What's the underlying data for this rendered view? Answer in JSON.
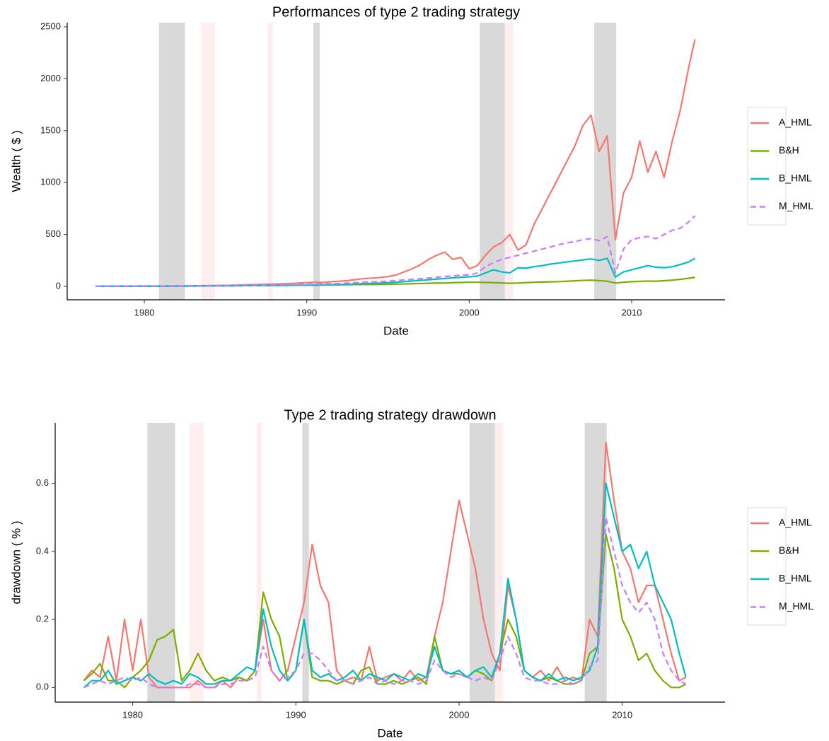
{
  "chart_data": [
    {
      "type": "line",
      "title": "Performances of type 2 trading strategy",
      "x_label": "Date",
      "y_label": "Wealth ( $ )",
      "x": [
        1977,
        1977.5,
        1978,
        1978.5,
        1979,
        1979.5,
        1980,
        1980.5,
        1981,
        1981.5,
        1982,
        1982.5,
        1983,
        1983.5,
        1984,
        1984.5,
        1985,
        1985.5,
        1986,
        1986.5,
        1987,
        1987.5,
        1988,
        1988.5,
        1989,
        1989.5,
        1990,
        1990.5,
        1991,
        1991.5,
        1992,
        1992.5,
        1993,
        1993.5,
        1994,
        1994.5,
        1995,
        1995.5,
        1996,
        1996.5,
        1997,
        1997.5,
        1998,
        1998.5,
        1999,
        1999.5,
        2000,
        2000.5,
        2001,
        2001.5,
        2002,
        2002.5,
        2003,
        2003.5,
        2004,
        2004.5,
        2005,
        2005.5,
        2006,
        2006.5,
        2007,
        2007.5,
        2008,
        2008.5,
        2009,
        2009.5,
        2010,
        2010.5,
        2011,
        2011.5,
        2012,
        2012.5,
        2013,
        2013.5,
        2013.9
      ],
      "series": [
        {
          "name": "A_HML",
          "color": "#F8766D",
          "linestyle": "solid",
          "values": [
            2,
            2,
            2,
            3,
            3,
            3,
            4,
            4,
            4,
            5,
            5,
            5,
            6,
            7,
            8,
            9,
            10,
            12,
            14,
            16,
            18,
            20,
            22,
            25,
            28,
            32,
            36,
            40,
            38,
            45,
            50,
            55,
            65,
            75,
            80,
            85,
            95,
            110,
            140,
            170,
            210,
            260,
            300,
            330,
            260,
            280,
            170,
            200,
            300,
            380,
            420,
            500,
            350,
            400,
            600,
            750,
            900,
            1050,
            1200,
            1350,
            1550,
            1650,
            1300,
            1450,
            450,
            900,
            1050,
            1400,
            1100,
            1300,
            1050,
            1400,
            1700,
            2100,
            2380
          ]
        },
        {
          "name": "B&H",
          "color": "#7CAE00",
          "linestyle": "solid",
          "values": [
            1,
            1,
            1,
            1,
            1,
            2,
            2,
            2,
            2,
            2,
            3,
            3,
            4,
            4,
            4,
            5,
            5,
            6,
            7,
            8,
            9,
            8,
            9,
            10,
            11,
            12,
            12,
            12,
            14,
            15,
            15,
            16,
            17,
            18,
            18,
            19,
            20,
            22,
            24,
            26,
            28,
            30,
            33,
            32,
            36,
            38,
            40,
            40,
            38,
            36,
            33,
            30,
            32,
            36,
            40,
            42,
            44,
            46,
            50,
            54,
            58,
            60,
            56,
            50,
            32,
            40,
            45,
            48,
            52,
            50,
            55,
            60,
            68,
            78,
            88
          ]
        },
        {
          "name": "B_HML",
          "color": "#00BFC4",
          "linestyle": "solid",
          "values": [
            1,
            1,
            1,
            1,
            1,
            2,
            2,
            2,
            2,
            3,
            3,
            3,
            4,
            4,
            5,
            5,
            6,
            6,
            7,
            8,
            8,
            8,
            9,
            10,
            10,
            11,
            11,
            12,
            14,
            16,
            18,
            20,
            24,
            28,
            30,
            32,
            36,
            40,
            46,
            52,
            58,
            64,
            70,
            76,
            82,
            88,
            92,
            100,
            130,
            160,
            140,
            130,
            180,
            175,
            190,
            200,
            215,
            225,
            235,
            245,
            255,
            265,
            250,
            270,
            90,
            140,
            160,
            180,
            200,
            185,
            180,
            190,
            210,
            235,
            270
          ]
        },
        {
          "name": "M_HML",
          "color": "#C77CFF",
          "linestyle": "dashed",
          "values": [
            1,
            1,
            1,
            1,
            2,
            2,
            2,
            3,
            3,
            3,
            4,
            4,
            5,
            5,
            6,
            7,
            8,
            9,
            10,
            11,
            12,
            13,
            14,
            15,
            16,
            18,
            20,
            22,
            24,
            26,
            28,
            32,
            36,
            40,
            42,
            46,
            50,
            56,
            62,
            68,
            74,
            80,
            88,
            96,
            100,
            110,
            110,
            130,
            190,
            230,
            260,
            280,
            300,
            320,
            340,
            360,
            380,
            400,
            420,
            430,
            450,
            460,
            440,
            480,
            130,
            360,
            450,
            470,
            480,
            460,
            500,
            540,
            560,
            620,
            680
          ]
        }
      ],
      "shaded_periods": [
        {
          "xlim": [
            1980.9,
            1982.5
          ],
          "color": "#d9d9d9"
        },
        {
          "xlim": [
            1983.5,
            1984.35
          ],
          "color": "#ffeef0"
        },
        {
          "xlim": [
            1987.6,
            1987.9
          ],
          "color": "#ffeef0"
        },
        {
          "xlim": [
            1990.4,
            1990.8
          ],
          "color": "#d9d9d9"
        },
        {
          "xlim": [
            2000.65,
            2002.2
          ],
          "color": "#d9d9d9"
        },
        {
          "xlim": [
            2002.2,
            2002.7
          ],
          "color": "#ffeef0"
        },
        {
          "xlim": [
            2007.7,
            2009.05
          ],
          "color": "#d9d9d9"
        }
      ],
      "xlim": [
        1975.25,
        2015.75
      ],
      "xticks": [
        1980,
        1990,
        2000,
        2010
      ],
      "ylim": [
        -129,
        2541
      ],
      "yticks": [
        0,
        500,
        1000,
        1500,
        2000,
        2500
      ],
      "legend": "right"
    },
    {
      "type": "line",
      "title": "Type 2 trading strategy drawdown",
      "x_label": "Date",
      "y_label": "drawdown ( % )",
      "x": [
        1977,
        1977.5,
        1978,
        1978.5,
        1979,
        1979.5,
        1980,
        1980.5,
        1981,
        1981.5,
        1982,
        1982.5,
        1983,
        1983.5,
        1984,
        1984.5,
        1985,
        1985.5,
        1986,
        1986.5,
        1987,
        1987.5,
        1988,
        1988.5,
        1989,
        1989.5,
        1990,
        1990.5,
        1991,
        1991.5,
        1992,
        1992.5,
        1993,
        1993.5,
        1994,
        1994.5,
        1995,
        1995.5,
        1996,
        1996.5,
        1997,
        1997.5,
        1998,
        1998.5,
        1999,
        1999.5,
        2000,
        2000.5,
        2001,
        2001.5,
        2002,
        2002.5,
        2003,
        2003.5,
        2004,
        2004.5,
        2005,
        2005.5,
        2006,
        2006.5,
        2007,
        2007.5,
        2008,
        2008.5,
        2009,
        2009.5,
        2010,
        2010.5,
        2011,
        2011.5,
        2012,
        2012.5,
        2013,
        2013.5,
        2013.9
      ],
      "series": [
        {
          "name": "A_HML",
          "color": "#F8766D",
          "linestyle": "solid",
          "values": [
            0.02,
            0.05,
            0.03,
            0.15,
            0.02,
            0.2,
            0.05,
            0.2,
            0.03,
            0,
            0,
            0,
            0,
            0,
            0.02,
            0,
            0,
            0.02,
            0,
            0.03,
            0.02,
            0.05,
            0.2,
            0.05,
            0.02,
            0.05,
            0.15,
            0.25,
            0.42,
            0.3,
            0.25,
            0.05,
            0.02,
            0.03,
            0.02,
            0.12,
            0.02,
            0.03,
            0.04,
            0.02,
            0.05,
            0.02,
            0.03,
            0.15,
            0.25,
            0.4,
            0.55,
            0.45,
            0.35,
            0.2,
            0.1,
            0.05,
            0.3,
            0.2,
            0.05,
            0.03,
            0.05,
            0.02,
            0.06,
            0.02,
            0.03,
            0.02,
            0.2,
            0.15,
            0.72,
            0.55,
            0.4,
            0.35,
            0.25,
            0.3,
            0.3,
            0.2,
            0.1,
            0.02,
            0.03
          ]
        },
        {
          "name": "B&H",
          "color": "#7CAE00",
          "linestyle": "solid",
          "values": [
            0.02,
            0.04,
            0.07,
            0.02,
            0.02,
            0,
            0.03,
            0.05,
            0.08,
            0.14,
            0.15,
            0.17,
            0.02,
            0.05,
            0.1,
            0.05,
            0.02,
            0.03,
            0.02,
            0.03,
            0.02,
            0.05,
            0.28,
            0.2,
            0.15,
            0.02,
            0.05,
            0.2,
            0.03,
            0.02,
            0.02,
            0.01,
            0.02,
            0.01,
            0.05,
            0.06,
            0.01,
            0.01,
            0.02,
            0.01,
            0.02,
            0.03,
            0.01,
            0.15,
            0.05,
            0.04,
            0.04,
            0.03,
            0.05,
            0.04,
            0.02,
            0.1,
            0.2,
            0.15,
            0.05,
            0.03,
            0.02,
            0.03,
            0.02,
            0.01,
            0.01,
            0.02,
            0.1,
            0.12,
            0.45,
            0.35,
            0.2,
            0.15,
            0.08,
            0.1,
            0.05,
            0.02,
            0,
            0,
            0.01
          ]
        },
        {
          "name": "B_HML",
          "color": "#00BFC4",
          "linestyle": "solid",
          "values": [
            0,
            0.02,
            0.02,
            0.05,
            0.01,
            0.02,
            0.03,
            0.02,
            0.04,
            0.02,
            0.01,
            0.02,
            0.01,
            0.04,
            0.03,
            0.01,
            0.01,
            0.02,
            0.02,
            0.04,
            0.06,
            0.05,
            0.23,
            0.12,
            0.05,
            0.02,
            0.05,
            0.2,
            0.05,
            0.03,
            0.04,
            0.02,
            0.03,
            0.05,
            0.02,
            0.04,
            0.03,
            0.02,
            0.04,
            0.03,
            0.02,
            0.04,
            0.03,
            0.12,
            0.05,
            0.04,
            0.05,
            0.03,
            0.05,
            0.06,
            0.03,
            0.1,
            0.32,
            0.2,
            0.05,
            0.03,
            0.02,
            0.04,
            0.02,
            0.03,
            0.02,
            0.03,
            0.05,
            0.12,
            0.6,
            0.5,
            0.4,
            0.42,
            0.35,
            0.4,
            0.3,
            0.25,
            0.2,
            0.1,
            0.03
          ]
        },
        {
          "name": "M_HML",
          "color": "#C77CFF",
          "linestyle": "dashed",
          "values": [
            0,
            0.01,
            0.02,
            0.01,
            0.02,
            0.03,
            0.02,
            0.03,
            0.01,
            0,
            0,
            0,
            0,
            0.01,
            0.01,
            0,
            0,
            0.01,
            0.01,
            0.02,
            0.02,
            0.03,
            0.12,
            0.05,
            0.02,
            0.03,
            0.05,
            0.1,
            0.1,
            0.08,
            0.05,
            0.02,
            0.02,
            0.01,
            0.02,
            0.03,
            0.01,
            0.02,
            0.01,
            0.02,
            0.02,
            0.01,
            0.02,
            0.08,
            0.05,
            0.03,
            0.04,
            0.03,
            0.02,
            0.03,
            0.02,
            0.08,
            0.15,
            0.1,
            0.03,
            0.02,
            0.02,
            0.01,
            0.01,
            0.02,
            0.01,
            0.02,
            0.06,
            0.08,
            0.5,
            0.4,
            0.3,
            0.25,
            0.22,
            0.25,
            0.2,
            0.1,
            0.05,
            0.02,
            0.01
          ]
        }
      ],
      "shaded_periods": [
        {
          "xlim": [
            1980.9,
            1982.6
          ],
          "color": "#d9d9d9"
        },
        {
          "xlim": [
            1983.5,
            1984.35
          ],
          "color": "#ffeef0"
        },
        {
          "xlim": [
            1987.6,
            1987.9
          ],
          "color": "#ffeef0"
        },
        {
          "xlim": [
            1990.4,
            1990.8
          ],
          "color": "#d9d9d9"
        },
        {
          "xlim": [
            2000.65,
            2002.2
          ],
          "color": "#d9d9d9"
        },
        {
          "xlim": [
            2002.2,
            2002.7
          ],
          "color": "#ffeef0"
        },
        {
          "xlim": [
            2007.7,
            2009.05
          ],
          "color": "#d9d9d9"
        }
      ],
      "xlim": [
        1975.25,
        2016.3
      ],
      "xticks": [
        1980,
        1990,
        2000,
        2010
      ],
      "ylim": [
        -0.043,
        0.778
      ],
      "yticks": [
        {
          "value": 0,
          "label": "0.0"
        },
        0.2,
        0.4,
        0.6
      ],
      "legend": "right"
    }
  ]
}
